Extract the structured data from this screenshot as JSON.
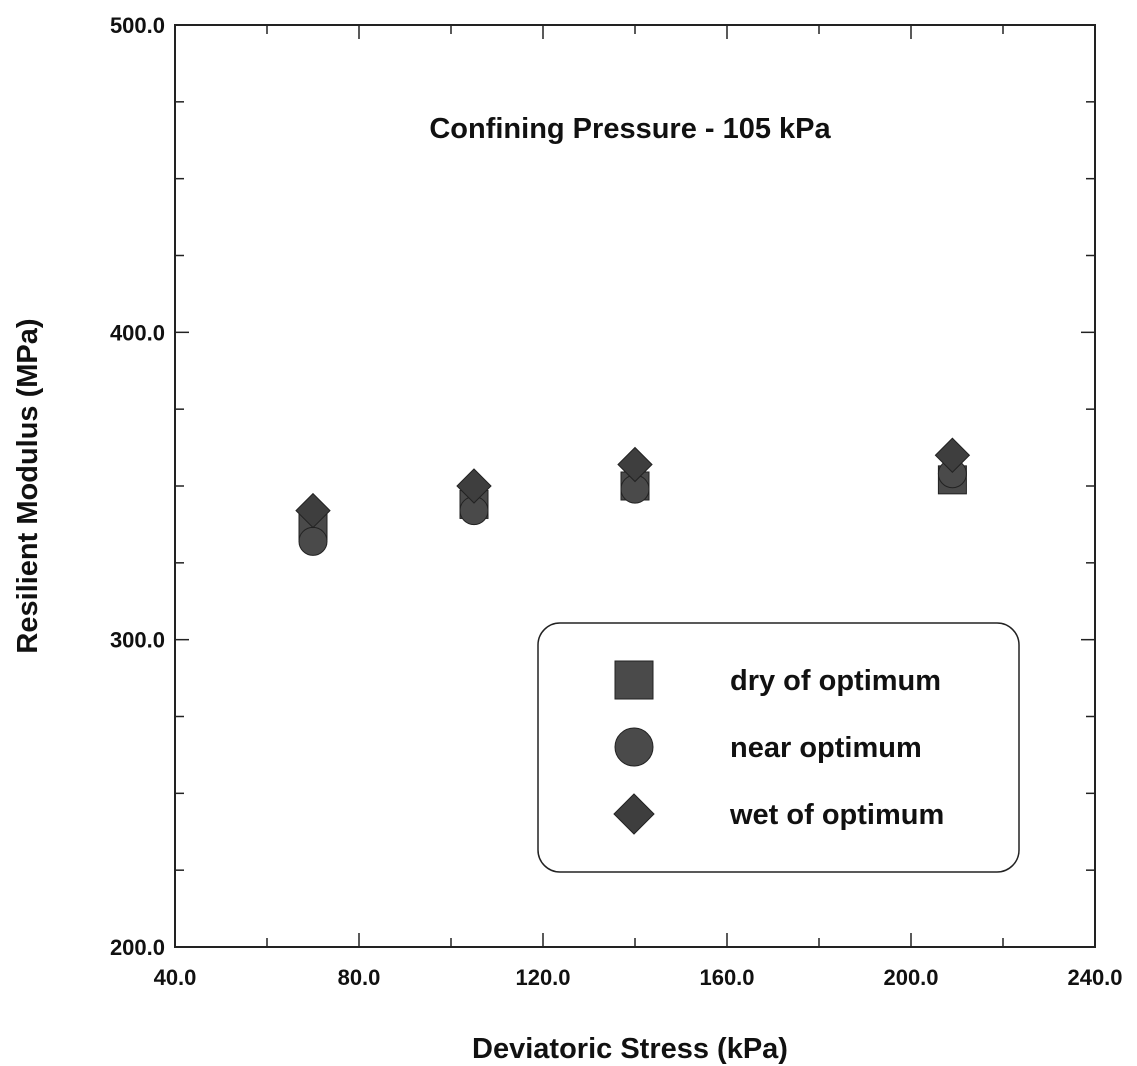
{
  "chart_data": {
    "type": "scatter",
    "title": "",
    "annotation": "Confining Pressure - 105 kPa",
    "xlabel": "Deviatoric Stress (kPa)",
    "ylabel": "Resilient Modulus  (MPa)",
    "xlim": [
      40.0,
      240.0
    ],
    "ylim": [
      200.0,
      500.0
    ],
    "x_major_ticks": [
      40.0,
      80.0,
      120.0,
      160.0,
      200.0,
      240.0
    ],
    "x_tick_labels": [
      "40.0",
      "80.0",
      "120.0",
      "160.0",
      "200.0",
      "240.0"
    ],
    "x_minor_step": 20,
    "y_major_ticks": [
      200.0,
      300.0,
      400.0,
      500.0
    ],
    "y_tick_labels": [
      "200.0",
      "300.0",
      "400.0",
      "500.0"
    ],
    "y_minor_step": 25,
    "grid": false,
    "legend_position": "bottom-right",
    "series": [
      {
        "name": "dry of optimum",
        "marker": "square",
        "color": "#4a4a4a",
        "x": [
          70,
          105,
          140,
          209
        ],
        "y": [
          337,
          344,
          350,
          352
        ]
      },
      {
        "name": "near optimum",
        "marker": "circle",
        "color": "#4a4a4a",
        "x": [
          70,
          105,
          140,
          209
        ],
        "y": [
          332,
          342,
          349,
          354
        ]
      },
      {
        "name": "wet of optimum",
        "marker": "diamond",
        "color": "#3e3e3e",
        "x": [
          70,
          105,
          140,
          209
        ],
        "y": [
          342,
          350,
          357,
          360
        ]
      }
    ]
  }
}
